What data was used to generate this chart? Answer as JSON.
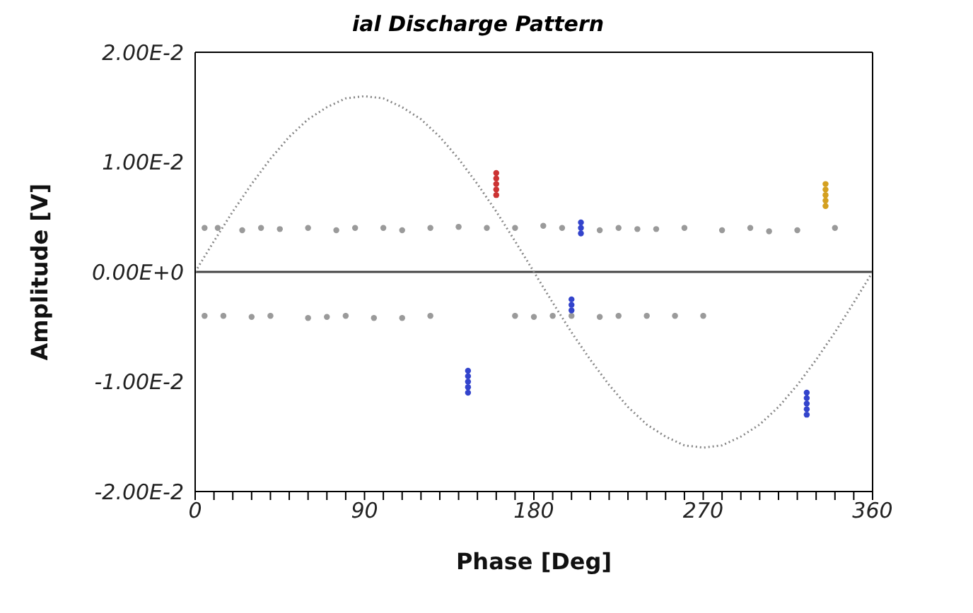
{
  "chart_data": {
    "type": "scatter",
    "title": "ial Discharge Pattern",
    "xlabel": "Phase [Deg]",
    "ylabel": "Amplitude [V]",
    "xlim": [
      0,
      360
    ],
    "ylim": [
      -0.02,
      0.02
    ],
    "xticks": [
      0,
      {
        "value": 10,
        "label": null
      },
      {
        "value": 20,
        "label": null
      },
      {
        "value": 30,
        "label": null
      },
      {
        "value": 40,
        "label": null
      },
      {
        "value": 50,
        "label": null
      },
      {
        "value": 60,
        "label": null
      },
      {
        "value": 70,
        "label": null
      },
      {
        "value": 80,
        "label": null
      },
      90,
      {
        "value": 100,
        "label": null
      },
      {
        "value": 110,
        "label": null
      },
      {
        "value": 120,
        "label": null
      },
      {
        "value": 130,
        "label": null
      },
      {
        "value": 140,
        "label": null
      },
      {
        "value": 150,
        "label": null
      },
      {
        "value": 160,
        "label": null
      },
      {
        "value": 170,
        "label": null
      },
      180,
      {
        "value": 190,
        "label": null
      },
      {
        "value": 200,
        "label": null
      },
      {
        "value": 210,
        "label": null
      },
      {
        "value": 220,
        "label": null
      },
      {
        "value": 230,
        "label": null
      },
      {
        "value": 240,
        "label": null
      },
      {
        "value": 250,
        "label": null
      },
      {
        "value": 260,
        "label": null
      },
      270,
      {
        "value": 280,
        "label": null
      },
      {
        "value": 290,
        "label": null
      },
      {
        "value": 300,
        "label": null
      },
      {
        "value": 310,
        "label": null
      },
      {
        "value": 320,
        "label": null
      },
      {
        "value": 330,
        "label": null
      },
      {
        "value": 340,
        "label": null
      },
      {
        "value": 350,
        "label": null
      },
      360
    ],
    "yticks": [
      {
        "value": -0.02,
        "label": "-2.00E-2"
      },
      {
        "value": -0.01,
        "label": "-1.00E-2"
      },
      {
        "value": 0,
        "label": "0.00E+0"
      },
      {
        "value": 0.01,
        "label": "1.00E-2"
      },
      {
        "value": 0.02,
        "label": "2.00E-2"
      }
    ],
    "grid": false,
    "marker": "circle",
    "ref_lines": [
      {
        "axis": "y",
        "value": 0,
        "color": "#444444"
      }
    ],
    "series": [
      {
        "type": "line",
        "line_style": "dotted",
        "marker": "none",
        "color": "#888888",
        "x": [
          0,
          10,
          20,
          30,
          40,
          50,
          60,
          70,
          80,
          90,
          100,
          110,
          120,
          130,
          140,
          150,
          160,
          170,
          180,
          190,
          200,
          210,
          220,
          230,
          240,
          250,
          260,
          270,
          280,
          290,
          300,
          310,
          320,
          330,
          340,
          350,
          360
        ],
        "values": [
          0,
          0.0028,
          0.0055,
          0.008,
          0.0103,
          0.0123,
          0.0139,
          0.015,
          0.0158,
          0.016,
          0.0158,
          0.015,
          0.0139,
          0.0123,
          0.0103,
          0.008,
          0.0055,
          0.0028,
          0,
          -0.0028,
          -0.0055,
          -0.008,
          -0.0103,
          -0.0123,
          -0.0139,
          -0.015,
          -0.0158,
          -0.016,
          -0.0158,
          -0.015,
          -0.0139,
          -0.0123,
          -0.0103,
          -0.008,
          -0.0055,
          -0.0028,
          0
        ]
      },
      {
        "color": "#9a9a9a",
        "x": [
          5,
          12,
          25,
          35,
          45,
          60,
          75,
          85,
          100,
          110,
          125,
          140,
          155,
          170,
          185,
          195,
          215,
          225,
          235,
          245,
          260,
          280,
          295,
          305,
          320,
          340,
          5,
          15,
          30,
          40,
          60,
          70,
          80,
          95,
          110,
          125,
          170,
          180,
          190,
          200,
          215,
          225,
          240,
          255,
          270
        ],
        "values": [
          0.004,
          0.004,
          0.0038,
          0.004,
          0.0039,
          0.004,
          0.0038,
          0.004,
          0.004,
          0.0038,
          0.004,
          0.0041,
          0.004,
          0.004,
          0.0042,
          0.004,
          0.0038,
          0.004,
          0.0039,
          0.0039,
          0.004,
          0.0038,
          0.004,
          0.0037,
          0.0038,
          0.004,
          -0.004,
          -0.004,
          -0.0041,
          -0.004,
          -0.0042,
          -0.0041,
          -0.004,
          -0.0042,
          -0.0042,
          -0.004,
          -0.004,
          -0.0041,
          -0.004,
          -0.004,
          -0.0041,
          -0.004,
          -0.004,
          -0.004,
          -0.004
        ]
      },
      {
        "color": "#cc3333",
        "x": [
          160,
          160,
          160,
          160,
          160
        ],
        "values": [
          0.007,
          0.0075,
          0.008,
          0.0085,
          0.009
        ]
      },
      {
        "color": "#d4a020",
        "x": [
          335,
          335,
          335,
          335,
          335
        ],
        "values": [
          0.006,
          0.0065,
          0.007,
          0.0075,
          0.008
        ]
      },
      {
        "color": "#3344cc",
        "x": [
          205,
          205,
          205,
          200,
          200,
          200,
          145,
          145,
          145,
          145,
          145,
          325,
          325,
          325,
          325,
          325
        ],
        "values": [
          0.0035,
          0.004,
          0.0045,
          -0.0025,
          -0.003,
          -0.0035,
          -0.009,
          -0.0095,
          -0.01,
          -0.0105,
          -0.011,
          -0.011,
          -0.0115,
          -0.012,
          -0.0125,
          -0.013
        ]
      }
    ]
  }
}
